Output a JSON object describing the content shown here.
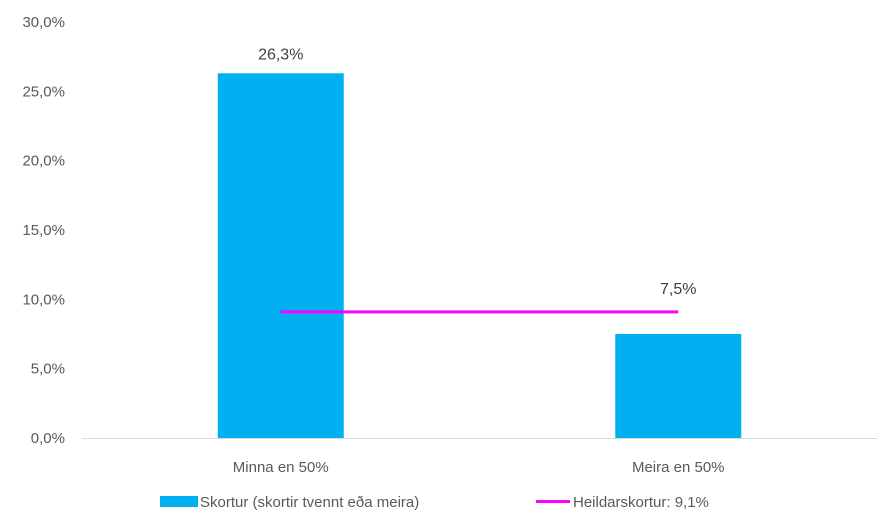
{
  "chart_data": {
    "type": "bar",
    "categories": [
      "Minna en 50%",
      "Meira en 50%"
    ],
    "series": [
      {
        "name": "Skortur (skortir tvennt eða meira)",
        "type": "bar",
        "values": [
          26.3,
          7.5
        ],
        "data_labels": [
          "26,3%",
          "7,5%"
        ],
        "color": "#00B0F0"
      },
      {
        "name": "Heildarskortur: 9,1%",
        "type": "line",
        "values": [
          9.1,
          9.1
        ],
        "color": "#FF00FF"
      }
    ],
    "ylim": [
      0,
      30
    ],
    "y_ticks": [
      0,
      5,
      10,
      15,
      20,
      25,
      30
    ],
    "y_tick_labels": [
      "0,0%",
      "5,0%",
      "10,0%",
      "15,0%",
      "20,0%",
      "25,0%",
      "30,0%"
    ],
    "grid": false,
    "legend_position": "bottom",
    "axis_color": "#D9D9D9"
  }
}
